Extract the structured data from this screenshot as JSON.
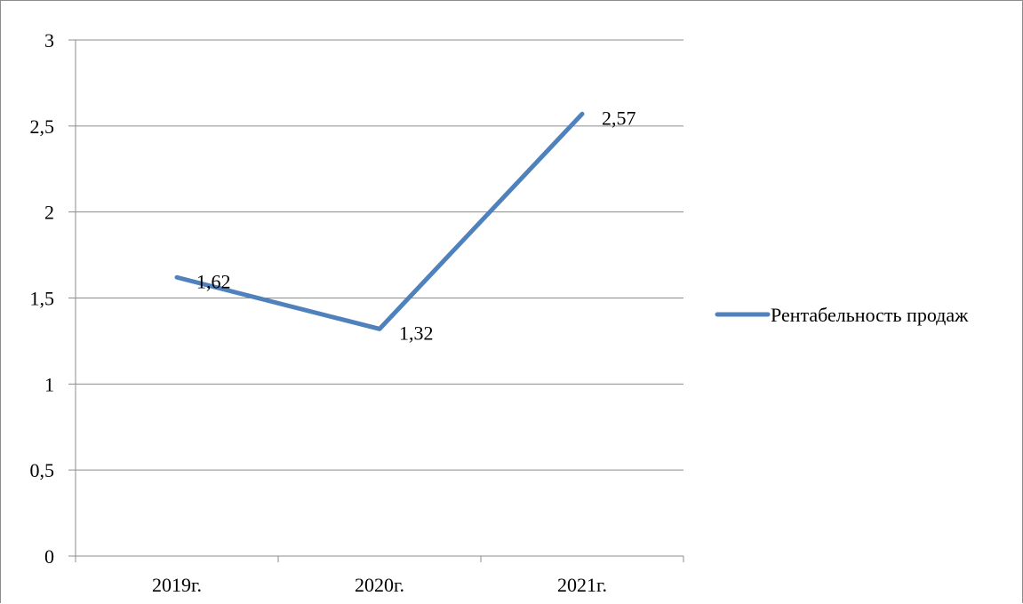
{
  "chart_data": {
    "type": "line",
    "categories": [
      "2019г.",
      "2020г.",
      "2021г."
    ],
    "series": [
      {
        "name": "Рентабельность продаж",
        "values": [
          1.62,
          1.32,
          2.57
        ],
        "value_labels": [
          "1,62",
          "1,32",
          "2,57"
        ],
        "color": "#4f81bd"
      }
    ],
    "ylim": [
      0,
      3
    ],
    "yticks": [
      0,
      0.5,
      1,
      1.5,
      2,
      2.5,
      3
    ],
    "ytick_labels": [
      "0",
      "0,5",
      "1",
      "1,5",
      "2",
      "2,5",
      "3"
    ],
    "grid": true,
    "legend_position": "right"
  },
  "colors": {
    "series": "#4f81bd",
    "grid": "#8c8c8c",
    "axis": "#8c8c8c"
  }
}
